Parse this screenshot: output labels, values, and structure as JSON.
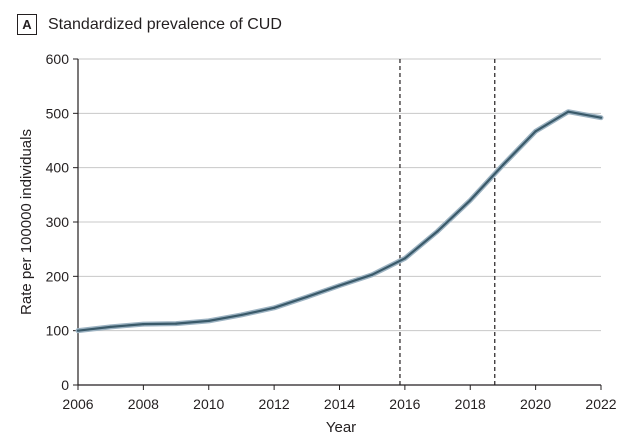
{
  "panel": {
    "badge": "A",
    "title": "Standardized prevalence of CUD"
  },
  "chart_data": {
    "type": "line",
    "title": "Standardized prevalence of CUD",
    "xlabel": "Year",
    "ylabel": "Rate per 100000 individuals",
    "xlim": [
      2006,
      2022
    ],
    "ylim": [
      0,
      600
    ],
    "xticks": [
      2006,
      2008,
      2010,
      2012,
      2014,
      2016,
      2018,
      2020,
      2022
    ],
    "yticks": [
      0,
      100,
      200,
      300,
      400,
      500,
      600
    ],
    "grid": {
      "horizontal": true,
      "vertical": false
    },
    "vlines": [
      2015.85,
      2018.75
    ],
    "line_color": "#3a5a6a",
    "band_color": "#9db3c2",
    "series": [
      {
        "x": [
          2006,
          2007,
          2008,
          2009,
          2010,
          2011,
          2012,
          2013,
          2014,
          2015,
          2016,
          2017,
          2018,
          2019,
          2020,
          2021,
          2022
        ],
        "values": [
          100,
          107,
          112,
          113,
          118,
          129,
          142,
          162,
          183,
          203,
          233,
          283,
          340,
          405,
          467,
          503,
          492
        ]
      }
    ]
  }
}
